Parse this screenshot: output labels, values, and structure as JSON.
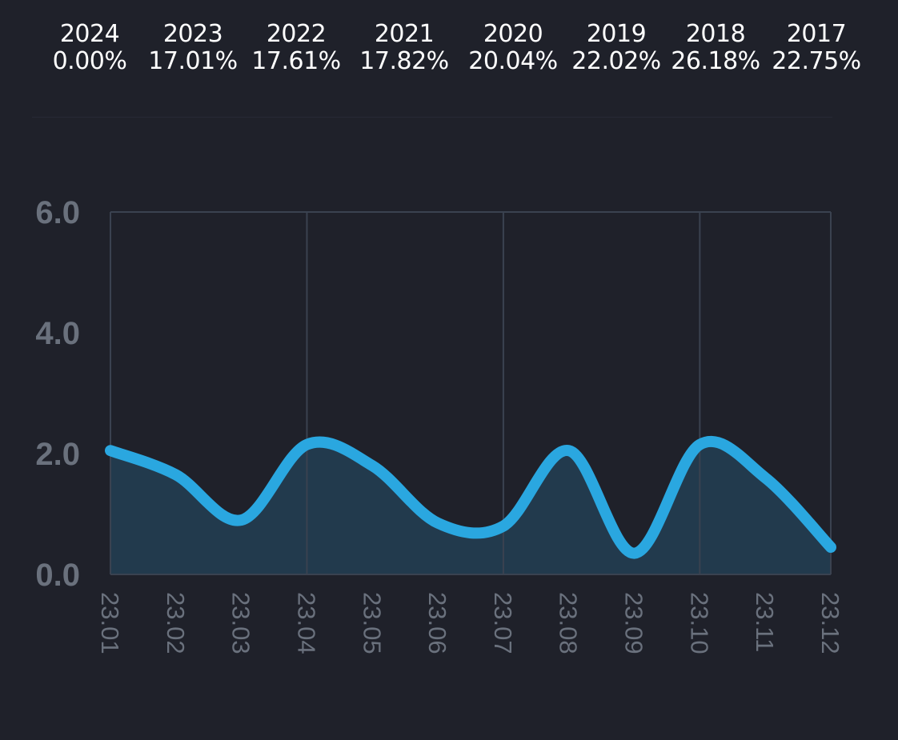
{
  "year_returns": [
    {
      "year": "2024",
      "value": "0.00%"
    },
    {
      "year": "2023",
      "value": "17.01%"
    },
    {
      "year": "2022",
      "value": "17.61%"
    },
    {
      "year": "2021",
      "value": "17.82%"
    },
    {
      "year": "2020",
      "value": "20.04%"
    },
    {
      "year": "2019",
      "value": "22.02%"
    },
    {
      "year": "2018",
      "value": "26.18%"
    },
    {
      "year": "2017",
      "value": "22.75%"
    }
  ],
  "chart_data": {
    "type": "area",
    "title": "",
    "xlabel": "",
    "ylabel": "",
    "categories": [
      "23.01",
      "23.02",
      "23.03",
      "23.04",
      "23.05",
      "23.06",
      "23.07",
      "23.08",
      "23.09",
      "23.10",
      "23.11",
      "23.12"
    ],
    "values": [
      2.05,
      1.65,
      0.9,
      2.15,
      1.8,
      0.85,
      0.8,
      2.05,
      0.35,
      2.15,
      1.6,
      0.45
    ],
    "ylim": [
      0,
      6
    ],
    "yticks": [
      "0.0",
      "2.0",
      "4.0",
      "6.0"
    ],
    "grid": true,
    "legend": "none",
    "colors": {
      "line": "#2aa7e0",
      "fill": "#223a4d",
      "grid": "#3a4250",
      "tick_text": "#6a717d"
    }
  }
}
